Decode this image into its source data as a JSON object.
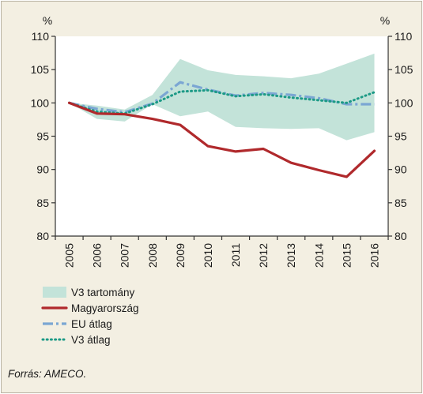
{
  "chart_data": {
    "type": "line",
    "title": "",
    "xlabel": "",
    "ylabel": "%",
    "ylabel_right": "%",
    "x": [
      "2005",
      "2006",
      "2007",
      "2008",
      "2009",
      "2010",
      "2011",
      "2012",
      "2013",
      "2014",
      "2015",
      "2016"
    ],
    "ylim": [
      80,
      110
    ],
    "yticks": [
      80,
      85,
      90,
      95,
      100,
      105,
      110
    ],
    "grid": false,
    "legend_position": "bottom-left",
    "band": {
      "name": "V3 tartomány",
      "color": "#c3e3d9",
      "lower": [
        100,
        97.6,
        97.2,
        99.8,
        98.0,
        98.7,
        96.4,
        96.2,
        96.1,
        96.2,
        94.4,
        95.6
      ],
      "upper": [
        100,
        99.6,
        99.0,
        101.2,
        106.6,
        104.9,
        104.2,
        104.0,
        103.7,
        104.4,
        105.9,
        107.4
      ]
    },
    "series": [
      {
        "name": "Magyarország",
        "color": "#b0292c",
        "style": "solid",
        "values": [
          100,
          98.4,
          98.3,
          97.6,
          96.7,
          93.5,
          92.7,
          93.1,
          91.0,
          89.9,
          88.9,
          92.8
        ]
      },
      {
        "name": "EU átlag",
        "color": "#7ba6d3",
        "style": "dashed",
        "values": [
          100,
          99.1,
          98.6,
          99.9,
          103.1,
          102.0,
          101.1,
          101.5,
          101.2,
          100.7,
          99.8,
          99.8
        ]
      },
      {
        "name": "V3 átlag",
        "color": "#1c9a86",
        "style": "dotted",
        "values": [
          100,
          98.7,
          98.4,
          99.8,
          101.7,
          101.9,
          101.0,
          101.3,
          100.8,
          100.4,
          100.0,
          101.6
        ]
      }
    ],
    "source": "Forrás: AMECO."
  }
}
